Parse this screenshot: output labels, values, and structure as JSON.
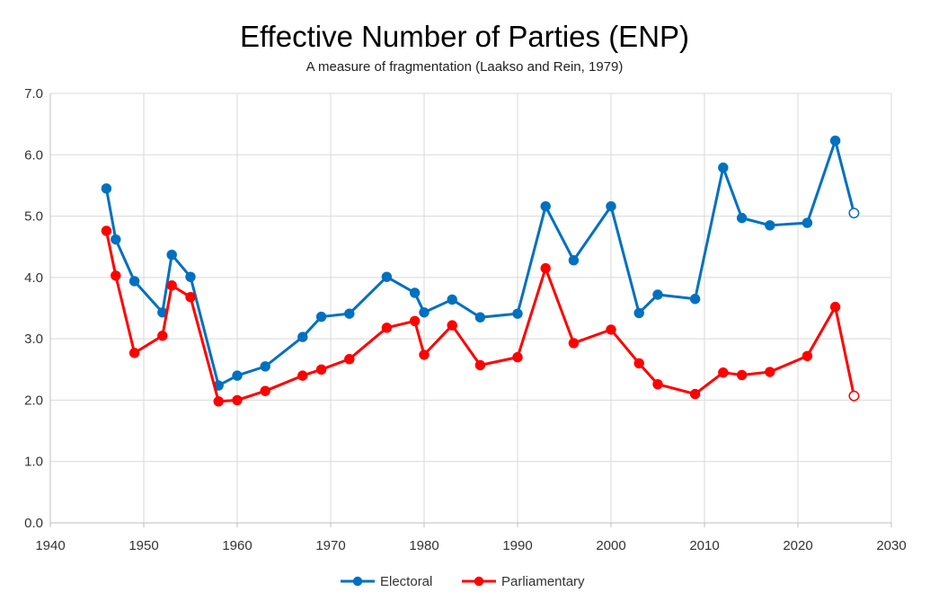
{
  "chart_data": {
    "type": "line",
    "title": "Effective Number of Parties (ENP)",
    "subtitle": "A measure of fragmentation (Laakso and Rein, 1979)",
    "xlabel": "",
    "ylabel": "",
    "xlim": [
      1940,
      2030
    ],
    "ylim": [
      0,
      7
    ],
    "x_ticks": [
      1940,
      1950,
      1960,
      1970,
      1980,
      1990,
      2000,
      2010,
      2020,
      2030
    ],
    "y_ticks": [
      "0.0",
      "1.0",
      "2.0",
      "3.0",
      "4.0",
      "5.0",
      "6.0",
      "7.0"
    ],
    "grid": true,
    "legend_position": "bottom",
    "series": [
      {
        "name": "Electoral",
        "color": "#0070C0",
        "points": [
          {
            "x": 1946,
            "y": 5.45
          },
          {
            "x": 1947,
            "y": 4.62
          },
          {
            "x": 1949,
            "y": 3.94
          },
          {
            "x": 1952,
            "y": 3.43
          },
          {
            "x": 1953,
            "y": 4.37
          },
          {
            "x": 1955,
            "y": 4.01
          },
          {
            "x": 1958,
            "y": 2.24
          },
          {
            "x": 1960,
            "y": 2.4
          },
          {
            "x": 1963,
            "y": 2.55
          },
          {
            "x": 1967,
            "y": 3.03
          },
          {
            "x": 1969,
            "y": 3.36
          },
          {
            "x": 1972,
            "y": 3.41
          },
          {
            "x": 1976,
            "y": 4.01
          },
          {
            "x": 1979,
            "y": 3.75
          },
          {
            "x": 1980,
            "y": 3.43
          },
          {
            "x": 1983,
            "y": 3.64
          },
          {
            "x": 1986,
            "y": 3.35
          },
          {
            "x": 1990,
            "y": 3.41
          },
          {
            "x": 1993,
            "y": 5.16
          },
          {
            "x": 1996,
            "y": 4.28
          },
          {
            "x": 2000,
            "y": 5.16
          },
          {
            "x": 2003,
            "y": 3.42
          },
          {
            "x": 2005,
            "y": 3.72
          },
          {
            "x": 2009,
            "y": 3.65
          },
          {
            "x": 2012,
            "y": 5.79
          },
          {
            "x": 2014,
            "y": 4.97
          },
          {
            "x": 2017,
            "y": 4.85
          },
          {
            "x": 2021,
            "y": 4.89
          },
          {
            "x": 2024,
            "y": 6.23
          },
          {
            "x": 2026,
            "y": 5.05,
            "hollow": true
          }
        ]
      },
      {
        "name": "Parliamentary",
        "color": "#FF0000",
        "points": [
          {
            "x": 1946,
            "y": 4.76
          },
          {
            "x": 1947,
            "y": 4.03
          },
          {
            "x": 1949,
            "y": 2.77
          },
          {
            "x": 1952,
            "y": 3.05
          },
          {
            "x": 1953,
            "y": 3.87
          },
          {
            "x": 1955,
            "y": 3.68
          },
          {
            "x": 1958,
            "y": 1.98
          },
          {
            "x": 1960,
            "y": 2.0
          },
          {
            "x": 1963,
            "y": 2.15
          },
          {
            "x": 1967,
            "y": 2.4
          },
          {
            "x": 1969,
            "y": 2.5
          },
          {
            "x": 1972,
            "y": 2.67
          },
          {
            "x": 1976,
            "y": 3.18
          },
          {
            "x": 1979,
            "y": 3.29
          },
          {
            "x": 1980,
            "y": 2.74
          },
          {
            "x": 1983,
            "y": 3.22
          },
          {
            "x": 1986,
            "y": 2.57
          },
          {
            "x": 1990,
            "y": 2.7
          },
          {
            "x": 1993,
            "y": 4.15
          },
          {
            "x": 1996,
            "y": 2.93
          },
          {
            "x": 2000,
            "y": 3.15
          },
          {
            "x": 2003,
            "y": 2.6
          },
          {
            "x": 2005,
            "y": 2.26
          },
          {
            "x": 2009,
            "y": 2.1
          },
          {
            "x": 2012,
            "y": 2.45
          },
          {
            "x": 2014,
            "y": 2.41
          },
          {
            "x": 2017,
            "y": 2.46
          },
          {
            "x": 2021,
            "y": 2.72
          },
          {
            "x": 2024,
            "y": 3.52
          },
          {
            "x": 2026,
            "y": 2.07,
            "hollow": true
          }
        ]
      }
    ]
  }
}
